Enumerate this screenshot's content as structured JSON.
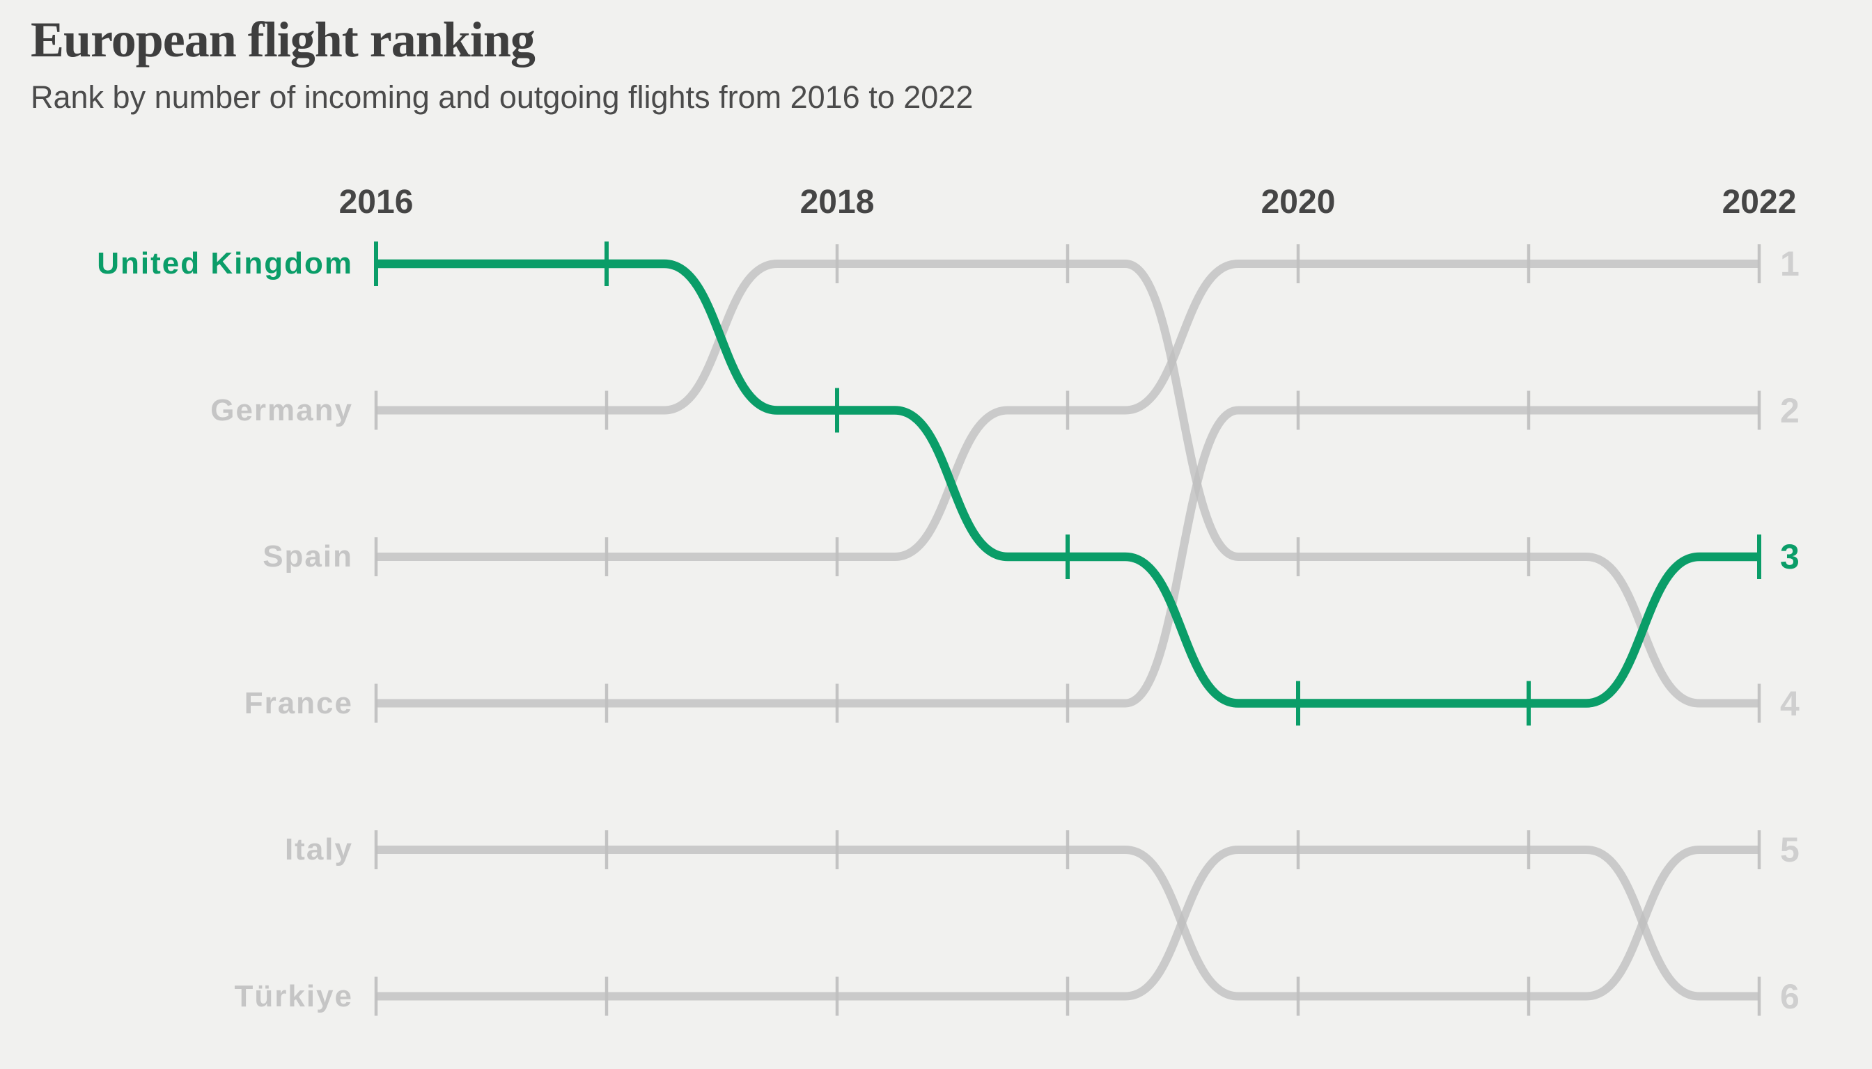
{
  "title": "European flight ranking",
  "subtitle": "Rank by number of incoming and outgoing flights from 2016 to 2022",
  "colors": {
    "background": "#f1f1ef",
    "highlight_green": "#0a9d68",
    "gray_line": "#bfbfbf",
    "gray_tick": "#c3c3c3",
    "country_label_gray": "#c5c5c5",
    "rank_label_gray": "#cfcfcf",
    "title_color": "#3e3e3e",
    "subtitle_color": "#4b4b4b",
    "axis_year_color": "#454545"
  },
  "chart_data": {
    "type": "line",
    "subtype": "bump-rank-chart",
    "x": [
      2016,
      2017,
      2018,
      2019,
      2020,
      2021,
      2022
    ],
    "x_axis_labels": [
      {
        "label": "2016",
        "year_index": 0
      },
      {
        "label": "2018",
        "year_index": 2
      },
      {
        "label": "2020",
        "year_index": 4
      },
      {
        "label": "2022",
        "year_index": 6
      }
    ],
    "ylabel": "rank",
    "ylim": [
      1,
      6
    ],
    "grid": false,
    "legend": "labels-left-and-right",
    "series": [
      {
        "name": "United Kingdom",
        "ranks": [
          1,
          1,
          2,
          3,
          4,
          4,
          3
        ],
        "highlight": true
      },
      {
        "name": "Germany",
        "ranks": [
          2,
          2,
          1,
          1,
          3,
          3,
          4
        ],
        "highlight": false
      },
      {
        "name": "Spain",
        "ranks": [
          3,
          3,
          3,
          2,
          1,
          1,
          1
        ],
        "highlight": false
      },
      {
        "name": "France",
        "ranks": [
          4,
          4,
          4,
          4,
          2,
          2,
          2
        ],
        "highlight": false
      },
      {
        "name": "Italy",
        "ranks": [
          5,
          5,
          5,
          5,
          6,
          6,
          5
        ],
        "highlight": false
      },
      {
        "name": "Türkiye",
        "ranks": [
          6,
          6,
          6,
          6,
          5,
          5,
          6
        ],
        "highlight": false
      }
    ],
    "rank_labels_right": [
      "1",
      "2",
      "3",
      "4",
      "5",
      "6"
    ],
    "highlighted_end_rank": "3"
  }
}
